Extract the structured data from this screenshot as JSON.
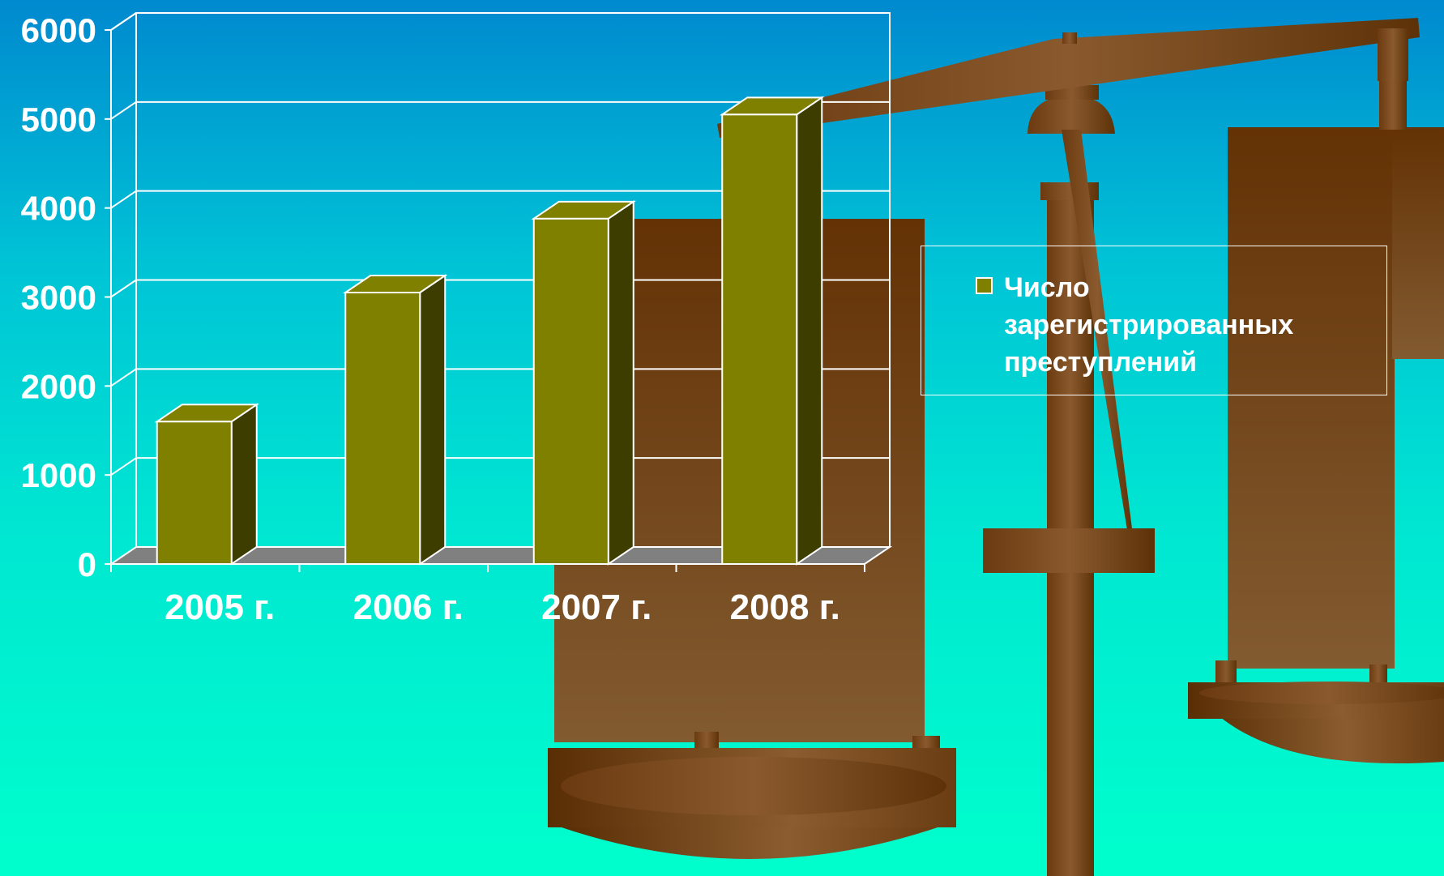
{
  "colors": {
    "bar_front": "#808000",
    "bar_top": "#808000",
    "bar_side": "#3d3d00",
    "floor": "#808080",
    "grid": "#ffffff",
    "text": "#ffffff"
  },
  "chart_data": {
    "type": "bar",
    "categories": [
      "2005 г.",
      "2006 г.",
      "2007 г.",
      "2008 г."
    ],
    "series": [
      {
        "name": "Число зарегистрированных преступлений",
        "values": [
          1600,
          3050,
          3880,
          5050
        ]
      }
    ],
    "title": "",
    "xlabel": "",
    "ylabel": "",
    "ylim": [
      0,
      6000
    ],
    "yticks": [
      "0",
      "1000",
      "2000",
      "3000",
      "4000",
      "5000",
      "6000"
    ],
    "grid": true,
    "legend": "right",
    "style": "3d-column"
  }
}
